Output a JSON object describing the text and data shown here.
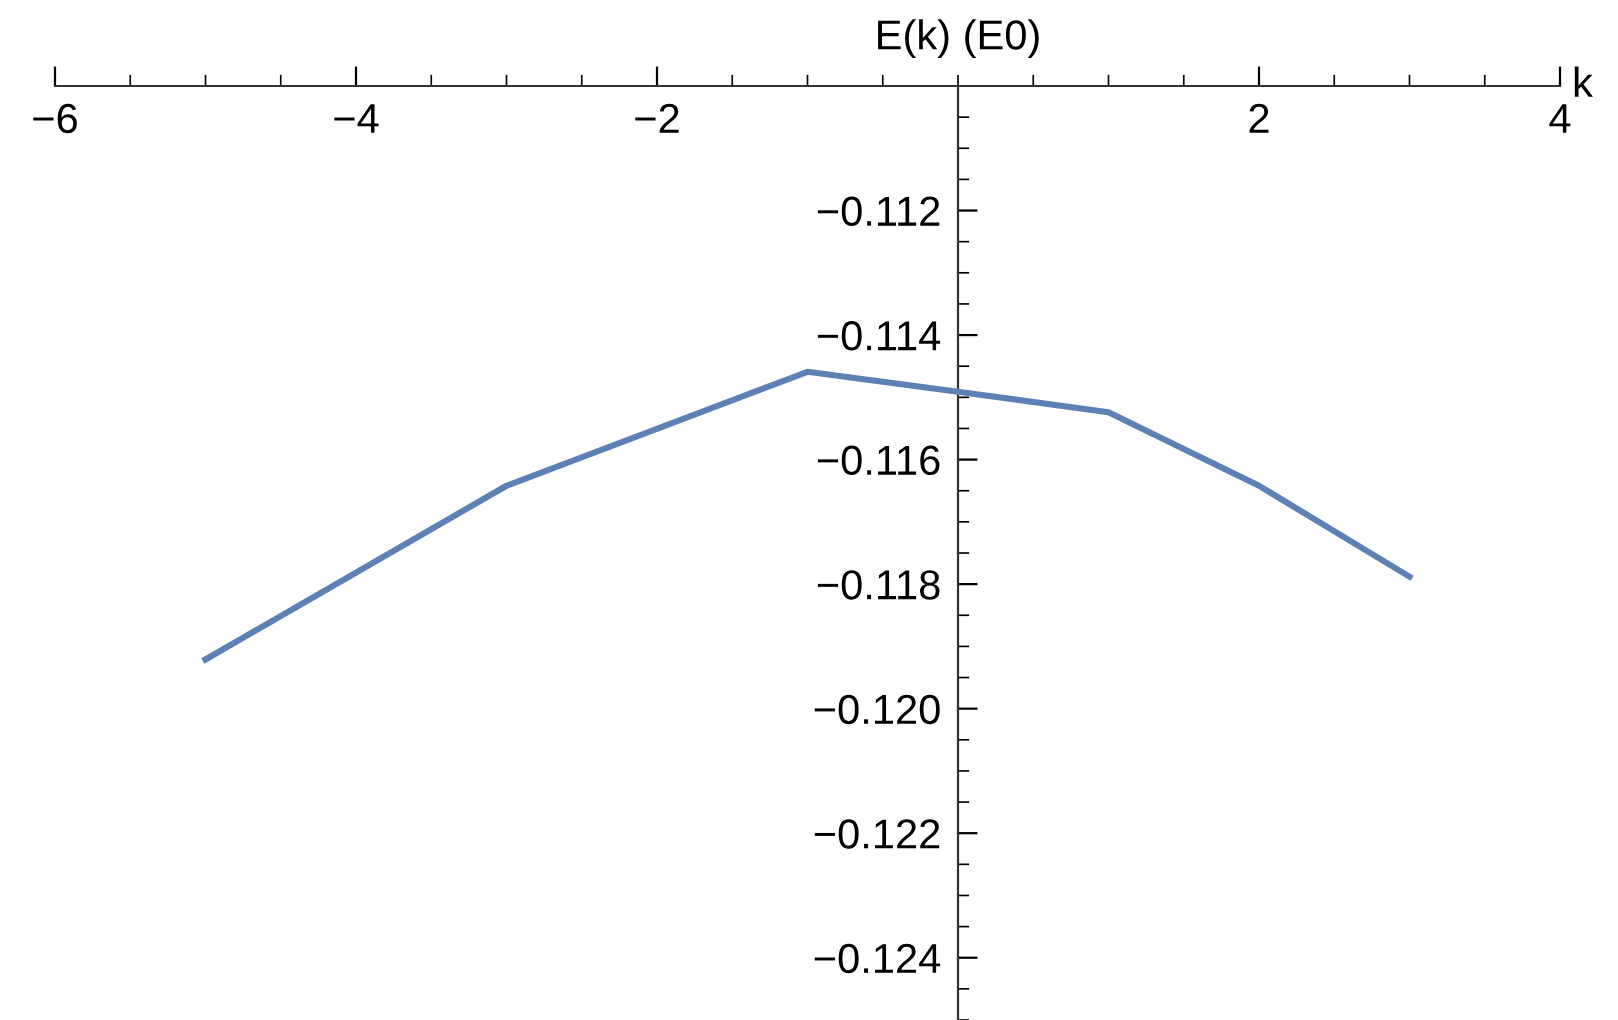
{
  "chart_data": {
    "type": "line",
    "xlabel": "k",
    "ylabel": "E(k) (E0)",
    "x": [
      -5,
      -3,
      -1,
      0,
      1,
      2,
      3
    ],
    "series": [
      {
        "color": "#5e81b5",
        "values": [
          -0.11921,
          -0.11642,
          -0.11459,
          -0.11491,
          -0.11524,
          -0.11642,
          -0.11788
        ]
      }
    ],
    "xlim": [
      -6,
      4
    ],
    "xticks": [
      {
        "value": -6,
        "label": "−6"
      },
      {
        "value": -4,
        "label": "−4"
      },
      {
        "value": -2,
        "label": "−2"
      },
      2,
      4
    ],
    "ylim": [
      -0.125,
      -0.11
    ],
    "yticks": [
      {
        "value": -0.112,
        "label": "−0.112"
      },
      {
        "value": -0.114,
        "label": "−0.114"
      },
      {
        "value": -0.116,
        "label": "−0.116"
      },
      {
        "value": -0.118,
        "label": "−0.118"
      },
      {
        "value": -0.12,
        "label": "−0.120"
      },
      {
        "value": -0.122,
        "label": "−0.122"
      },
      {
        "value": -0.124,
        "label": "−0.124"
      }
    ],
    "grid": false,
    "legend": false,
    "marker": "none",
    "line_style": "solid"
  }
}
